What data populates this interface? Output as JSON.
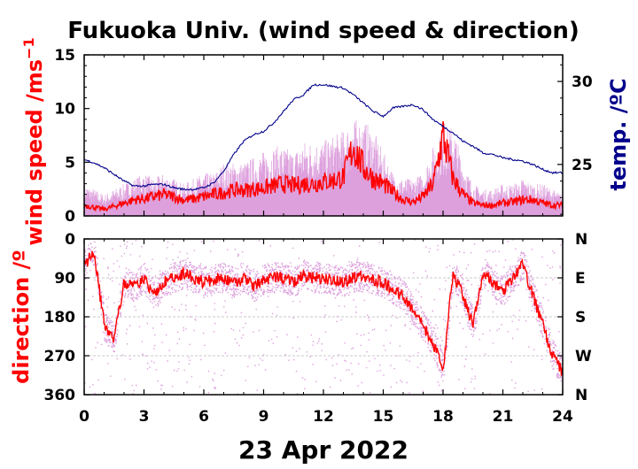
{
  "chart_data": [
    {
      "type": "line",
      "panel": "wind speed",
      "title": "Fukuoka Univ. (wind speed & direction)",
      "ylabel": "wind speed /ms",
      "ylabel_sup": "−1",
      "y2label": "temp. /ºC",
      "xlim": [
        0,
        24
      ],
      "ylim": [
        0,
        15
      ],
      "y2lim": [
        21.9,
        31.6
      ],
      "yticks": [
        "0",
        "5",
        "10",
        "15"
      ],
      "y2ticks": [
        "25",
        "30"
      ],
      "grid": false,
      "series": [
        {
          "kind": "wind speed (instantaneous)",
          "color": "#dda0dd",
          "x": [
            0,
            0.5,
            1,
            1.5,
            2,
            2.5,
            3,
            3.5,
            4,
            4.5,
            5,
            5.5,
            6,
            6.5,
            7,
            7.5,
            8,
            8.5,
            9,
            9.5,
            10,
            10.5,
            11,
            11.5,
            12,
            12.5,
            13,
            13.5,
            14,
            14.5,
            15,
            15.5,
            16,
            16.5,
            17,
            17.5,
            18,
            18.5,
            19,
            19.5,
            20,
            20.5,
            21,
            21.5,
            22,
            22.5,
            23,
            23.5,
            24
          ],
          "values": [
            3,
            2.5,
            2,
            2.5,
            3,
            3.5,
            4,
            3.5,
            4,
            3.5,
            3,
            3.5,
            4,
            4,
            5,
            5,
            5,
            5.5,
            6,
            6.5,
            6.5,
            6,
            7,
            7,
            7,
            7.5,
            8,
            9,
            9,
            8,
            6,
            4,
            3.5,
            3.5,
            4,
            6.5,
            8,
            8.5,
            5,
            3,
            2.5,
            2.5,
            3,
            3,
            3.5,
            3,
            3,
            2.5,
            2
          ]
        },
        {
          "kind": "wind speed (average)",
          "color": "#ff0000",
          "x": [
            0,
            0.5,
            1,
            1.5,
            2,
            2.5,
            3,
            3.5,
            4,
            4.5,
            5,
            5.5,
            6,
            6.5,
            7,
            7.5,
            8,
            8.5,
            9,
            9.5,
            10,
            10.5,
            11,
            11.5,
            12,
            12.5,
            13,
            13.5,
            14,
            14.5,
            15,
            15.5,
            16,
            16.5,
            17,
            17.5,
            18,
            18.5,
            19,
            19.5,
            20,
            20.5,
            21,
            21.5,
            22,
            22.5,
            23,
            23.5,
            24
          ],
          "values": [
            1,
            0.8,
            0.6,
            0.9,
            1.2,
            1.5,
            1.6,
            1.8,
            2,
            1.8,
            1.5,
            1.6,
            1.8,
            2,
            2.2,
            2.4,
            2.4,
            2.5,
            2.6,
            2.8,
            3,
            2.8,
            3,
            3,
            3.2,
            3.3,
            3.6,
            6.5,
            4.5,
            3.5,
            3,
            2.2,
            1.5,
            1.3,
            1.8,
            3,
            7.5,
            3.5,
            2,
            1.2,
            1,
            1,
            1.2,
            1.3,
            1.5,
            1.5,
            1.2,
            1,
            1
          ]
        },
        {
          "kind": "temperature",
          "color": "#00008b",
          "axis": "right",
          "x": [
            0,
            0.5,
            1,
            1.5,
            2,
            2.5,
            3,
            3.5,
            4,
            4.5,
            5,
            5.5,
            6,
            6.5,
            7,
            7.5,
            8,
            8.5,
            9,
            9.5,
            10,
            10.5,
            11,
            11.5,
            12,
            12.5,
            13,
            13.5,
            14,
            14.5,
            15,
            15.5,
            16,
            16.5,
            17,
            17.5,
            18,
            18.5,
            19,
            19.5,
            20,
            20.5,
            21,
            21.5,
            22,
            22.5,
            23,
            23.5,
            24
          ],
          "values": [
            25.3,
            25.1,
            24.8,
            24.4,
            24,
            23.7,
            23.7,
            23.8,
            23.8,
            23.6,
            23.5,
            23.5,
            23.6,
            23.9,
            24.6,
            25.6,
            26.4,
            26.8,
            27,
            27.5,
            28.2,
            28.9,
            29.2,
            29.8,
            29.8,
            29.7,
            29.6,
            29.2,
            28.7,
            28.2,
            27.9,
            28.4,
            28.5,
            28.6,
            28.3,
            27.7,
            27.3,
            26.9,
            26.4,
            26.1,
            25.7,
            25.6,
            25.4,
            25.3,
            25.2,
            25,
            24.7,
            24.5,
            24.5
          ]
        }
      ]
    },
    {
      "type": "scatter",
      "panel": "wind direction",
      "ylabel": "direction /º",
      "xlabel": "23 Apr 2022",
      "xlim": [
        0,
        24
      ],
      "ylim": [
        360,
        0
      ],
      "xticks": [
        "0",
        "3",
        "6",
        "9",
        "12",
        "15",
        "18",
        "21",
        "24"
      ],
      "yticks": [
        "0",
        "90",
        "180",
        "270",
        "360"
      ],
      "y2ticks": [
        "N",
        "E",
        "S",
        "W",
        "N"
      ],
      "grid": true,
      "series": [
        {
          "kind": "wind direction (average)",
          "color": "#ff0000",
          "x": [
            0,
            0.5,
            1,
            1.5,
            2,
            2.5,
            3,
            3.5,
            4,
            4.5,
            5,
            5.5,
            6,
            6.5,
            7,
            7.5,
            8,
            8.5,
            9,
            9.5,
            10,
            10.5,
            11,
            11.5,
            12,
            12.5,
            13,
            13.5,
            14,
            14.5,
            15,
            15.5,
            16,
            16.5,
            17,
            17.5,
            18,
            18.5,
            19,
            19.5,
            20,
            20.5,
            21,
            21.5,
            22,
            22.5,
            23,
            23.5,
            24
          ],
          "values": [
            60,
            30,
            200,
            230,
            100,
            110,
            90,
            130,
            100,
            90,
            80,
            90,
            100,
            95,
            90,
            100,
            90,
            110,
            95,
            90,
            90,
            100,
            85,
            90,
            90,
            95,
            100,
            90,
            85,
            95,
            100,
            120,
            130,
            170,
            200,
            240,
            300,
            80,
            130,
            200,
            80,
            100,
            120,
            90,
            60,
            130,
            200,
            270,
            310
          ]
        },
        {
          "kind": "wind direction (instantaneous)",
          "color": "#dda0dd",
          "x": [
            0,
            0.5,
            1,
            1.5,
            2,
            2.5,
            3,
            3.5,
            4,
            4.5,
            5,
            5.5,
            6,
            6.5,
            7,
            7.5,
            8,
            8.5,
            9,
            9.5,
            10,
            10.5,
            11,
            11.5,
            12,
            12.5,
            13,
            13.5,
            14,
            14.5,
            15,
            15.5,
            16,
            16.5,
            17,
            17.5,
            18,
            18.5,
            19,
            19.5,
            20,
            20.5,
            21,
            21.5,
            22,
            22.5,
            23,
            23.5,
            24
          ],
          "values": [
            60,
            30,
            200,
            230,
            100,
            110,
            90,
            130,
            100,
            90,
            80,
            90,
            100,
            95,
            90,
            100,
            90,
            110,
            95,
            90,
            90,
            100,
            85,
            90,
            90,
            95,
            100,
            90,
            85,
            95,
            100,
            120,
            130,
            170,
            200,
            240,
            300,
            80,
            130,
            200,
            80,
            100,
            120,
            90,
            60,
            130,
            200,
            270,
            310
          ]
        }
      ]
    }
  ]
}
